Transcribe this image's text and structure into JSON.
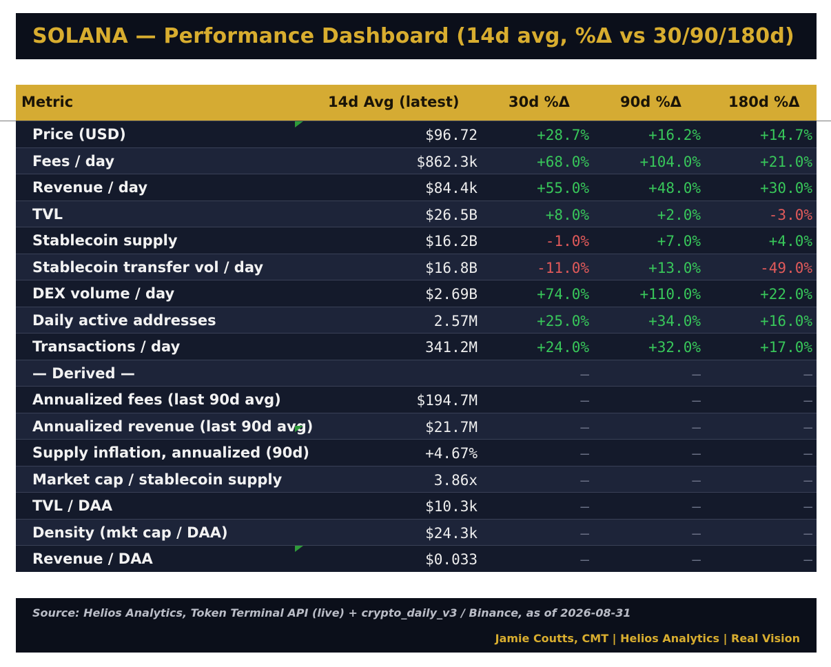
{
  "title": "SOLANA — Performance Dashboard (14d avg, %Δ vs 30/90/180d)",
  "colors": {
    "accent": "#d5ab33",
    "background": "#0b0f1a",
    "positive": "#38c75a",
    "negative": "#e25a5a"
  },
  "table": {
    "headers": {
      "metric": "Metric",
      "avg": "14d Avg (latest)",
      "d30": "30d %Δ",
      "d90": "90d %Δ",
      "d180": "180d %Δ"
    },
    "rows": [
      {
        "metric": "Price (USD)",
        "avg": "$96.72",
        "d30": "+28.7%",
        "d90": "+16.2%",
        "d180": "+14.7%"
      },
      {
        "metric": "Fees / day",
        "avg": "$862.3k",
        "d30": "+68.0%",
        "d90": "+104.0%",
        "d180": "+21.0%"
      },
      {
        "metric": "Revenue / day",
        "avg": "$84.4k",
        "d30": "+55.0%",
        "d90": "+48.0%",
        "d180": "+30.0%"
      },
      {
        "metric": "TVL",
        "avg": "$26.5B",
        "d30": "+8.0%",
        "d90": "+2.0%",
        "d180": "-3.0%"
      },
      {
        "metric": "Stablecoin supply",
        "avg": "$16.2B",
        "d30": "-1.0%",
        "d90": "+7.0%",
        "d180": "+4.0%"
      },
      {
        "metric": "Stablecoin transfer vol / day",
        "avg": "$16.8B",
        "d30": "-11.0%",
        "d90": "+13.0%",
        "d180": "-49.0%"
      },
      {
        "metric": "DEX volume / day",
        "avg": "$2.69B",
        "d30": "+74.0%",
        "d90": "+110.0%",
        "d180": "+22.0%"
      },
      {
        "metric": "Daily active addresses",
        "avg": "2.57M",
        "d30": "+25.0%",
        "d90": "+34.0%",
        "d180": "+16.0%"
      },
      {
        "metric": "Transactions / day",
        "avg": "341.2M",
        "d30": "+24.0%",
        "d90": "+32.0%",
        "d180": "+17.0%"
      },
      {
        "metric": "— Derived —",
        "avg": "",
        "d30": "–",
        "d90": "–",
        "d180": "–"
      },
      {
        "metric": "Annualized fees (last 90d avg)",
        "avg": "$194.7M",
        "d30": "–",
        "d90": "–",
        "d180": "–"
      },
      {
        "metric": "Annualized revenue (last 90d avg)",
        "avg": "$21.7M",
        "d30": "–",
        "d90": "–",
        "d180": "–"
      },
      {
        "metric": "Supply inflation, annualized (90d)",
        "avg": "+4.67%",
        "d30": "–",
        "d90": "–",
        "d180": "–"
      },
      {
        "metric": "Market cap / stablecoin supply",
        "avg": "3.86x",
        "d30": "–",
        "d90": "–",
        "d180": "–"
      },
      {
        "metric": "TVL / DAA",
        "avg": "$10.3k",
        "d30": "–",
        "d90": "–",
        "d180": "–"
      },
      {
        "metric": "Density (mkt cap / DAA)",
        "avg": "$24.3k",
        "d30": "–",
        "d90": "–",
        "d180": "–"
      },
      {
        "metric": "Revenue / DAA",
        "avg": "$0.033",
        "d30": "–",
        "d90": "–",
        "d180": "–"
      }
    ]
  },
  "footer": {
    "source": "Source: Helios Analytics, Token Terminal API (live) + crypto_daily_v3 / Binance, as of 2026-08-31",
    "author": "Jamie Coutts, CMT | Helios Analytics | Real Vision"
  }
}
